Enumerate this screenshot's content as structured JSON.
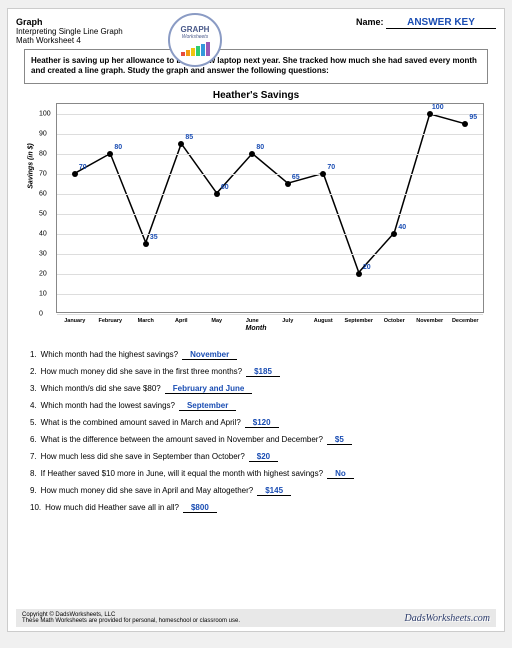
{
  "header": {
    "title": "Graph",
    "subtitle1": "Interpreting Single Line Graph",
    "subtitle2": "Math Worksheet 4",
    "logo_text1": "GRAPH",
    "logo_text2": "Worksheets",
    "name_label": "Name:",
    "name_value": "ANSWER KEY"
  },
  "instruction": "Heather is saving up her allowance to buy a new laptop next year. She tracked how much she had saved every month and created a line graph. Study the graph and answer the following questions:",
  "chart": {
    "title": "Heather's Savings",
    "type": "line",
    "y_label": "Savings (in $)",
    "x_label": "Month",
    "ylim": [
      0,
      105
    ],
    "yticks": [
      0,
      10,
      20,
      30,
      40,
      50,
      60,
      70,
      80,
      90,
      100
    ],
    "categories": [
      "January",
      "February",
      "March",
      "April",
      "May",
      "June",
      "July",
      "August",
      "September",
      "October",
      "November",
      "December"
    ],
    "values": [
      70,
      80,
      35,
      85,
      60,
      80,
      65,
      70,
      20,
      40,
      100,
      95
    ],
    "line_color": "#000000",
    "point_color": "#000000",
    "label_color": "#1a4db3",
    "grid_color": "#dddddd",
    "background_color": "#ffffff"
  },
  "questions": [
    {
      "n": "1.",
      "t": "Which month had the highest savings?",
      "a": "November"
    },
    {
      "n": "2.",
      "t": "How much money did she save in the first three months?",
      "a": "$185"
    },
    {
      "n": "3.",
      "t": "Which month/s did she save $80?",
      "a": "February and June"
    },
    {
      "n": "4.",
      "t": "Which month had the lowest savings?",
      "a": "September"
    },
    {
      "n": "5.",
      "t": "What is the combined amount saved in March and April?",
      "a": "$120"
    },
    {
      "n": "6.",
      "t": "What is the difference between the amount saved in November and December?",
      "a": "$5"
    },
    {
      "n": "7.",
      "t": "How much less did she save in September than October?",
      "a": "$20"
    },
    {
      "n": "8.",
      "t": "If Heather saved $10 more in June, will it equal the month with highest savings?",
      "a": "No"
    },
    {
      "n": "9.",
      "t": "How much money did she save in April and May altogether?",
      "a": "$145"
    },
    {
      "n": "10.",
      "t": "How much did Heather save all in all?",
      "a": "$800"
    }
  ],
  "footer": {
    "copyright": "Copyright © DadsWorksheets, LLC",
    "tagline": "These Math Worksheets are provided for personal, homeschool or classroom use.",
    "brand": "DadsWorksheets.com"
  },
  "logo_bars": [
    "#e74c3c",
    "#f39c12",
    "#f1c40f",
    "#2ecc71",
    "#3498db",
    "#9b59b6"
  ]
}
